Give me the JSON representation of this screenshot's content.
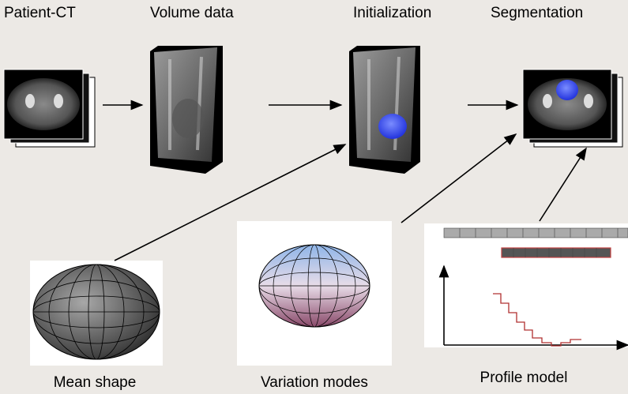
{
  "pipeline": [
    {
      "label": "Patient-CT"
    },
    {
      "label": "Volume data"
    },
    {
      "label": "Initialization"
    },
    {
      "label": "Segmentation"
    }
  ],
  "models": [
    {
      "label": "Mean shape"
    },
    {
      "label": "Variation modes"
    },
    {
      "label": "Profile model"
    }
  ]
}
